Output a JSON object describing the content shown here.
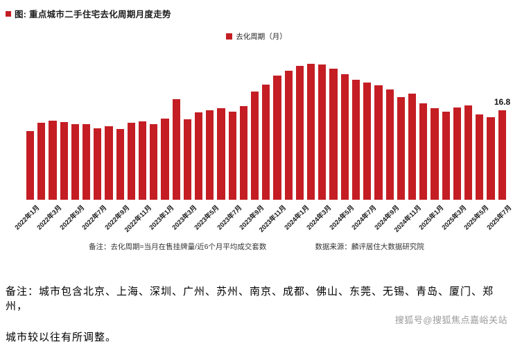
{
  "title": {
    "text": "图: 重点城市二手住宅去化周期月度走势"
  },
  "legend": {
    "label": "去化周期（月）"
  },
  "footnote": {
    "left": "备注：去化周期=当月在售挂牌量/近6个月平均成交套数",
    "right": "数据来源：麟评居住大数据研究院"
  },
  "bottom_note": {
    "line1": "备注：城市包含北京、上海、深圳、广州、苏州、南京、成都、佛山、东莞、无锡、青岛、厦门、郑州，",
    "line2": "城市较以往有所调整。"
  },
  "watermark": {
    "text": "搜狐号@搜狐焦点嘉峪关站"
  },
  "colors": {
    "bar": "#c41e24"
  },
  "chart_data": {
    "type": "bar",
    "title": "重点城市二手住宅去化周期月度走势",
    "ylabel": "去化周期（月）",
    "xlabel": "",
    "grid": false,
    "legend_position": "top-center",
    "legend_entries": [
      "去化周期（月）"
    ],
    "ylim": [
      0,
      27
    ],
    "last_value_label": "16.8",
    "x": [
      "2022年1月",
      "2022年2月",
      "2022年3月",
      "2022年4月",
      "2022年5月",
      "2022年6月",
      "2022年7月",
      "2022年8月",
      "2022年9月",
      "2022年10月",
      "2022年11月",
      "2022年12月",
      "2023年1月",
      "2023年2月",
      "2023年3月",
      "2023年4月",
      "2023年5月",
      "2023年6月",
      "2023年7月",
      "2023年8月",
      "2023年9月",
      "2023年10月",
      "2023年11月",
      "2023年12月",
      "2024年1月",
      "2024年2月",
      "2024年3月",
      "2024年4月",
      "2024年5月",
      "2024年6月",
      "2024年7月",
      "2024年8月",
      "2024年9月",
      "2024年10月",
      "2024年11月",
      "2024年12月",
      "2025年1月",
      "2025年2月",
      "2025年3月",
      "2025年4月",
      "2025年5月",
      "2025年6月",
      "2025年7月"
    ],
    "values": [
      12.8,
      14.4,
      14.8,
      14.5,
      14.1,
      14.2,
      13.4,
      13.7,
      13.2,
      14.4,
      14.7,
      14.2,
      15.2,
      18.8,
      15.0,
      16.4,
      16.8,
      17.1,
      16.5,
      17.5,
      20.2,
      21.5,
      23.3,
      24.2,
      25.0,
      25.5,
      25.3,
      24.6,
      23.5,
      22.4,
      21.9,
      21.4,
      20.6,
      19.2,
      19.8,
      18.1,
      17.1,
      16.5,
      17.3,
      17.6,
      16.0,
      15.5,
      16.8
    ],
    "tick_labels": [
      "2022年1月",
      "2022年3月",
      "2022年5月",
      "2022年7月",
      "2022年9月",
      "2022年11月",
      "2023年1月",
      "2023年3月",
      "2023年5月",
      "2023年7月",
      "2023年9月",
      "2023年11月",
      "2024年1月",
      "2024年3月",
      "2024年5月",
      "2024年7月",
      "2024年9月",
      "2024年11月",
      "2025年1月",
      "2025年3月",
      "2025年5月",
      "2025年7月"
    ]
  }
}
